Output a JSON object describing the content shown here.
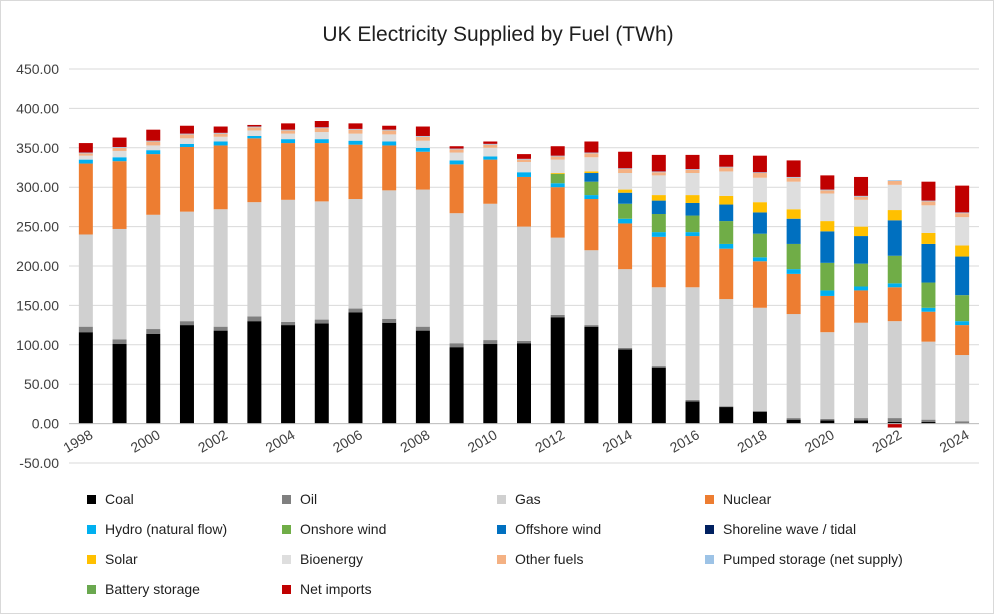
{
  "chart_data": {
    "type": "stacked-bar",
    "title": "UK Electricity Supplied by Fuel (TWh)",
    "xlabel": "",
    "ylabel": "",
    "ylim": [
      -50,
      450
    ],
    "yticks": [
      -50,
      0,
      50,
      100,
      150,
      200,
      250,
      300,
      350,
      400,
      450
    ],
    "ytick_labels": [
      "-50.00",
      "0.00",
      "50.00",
      "100.00",
      "150.00",
      "200.00",
      "250.00",
      "300.00",
      "350.00",
      "400.00",
      "450.00"
    ],
    "grid": true,
    "legend_position": "bottom",
    "categories": [
      "1998",
      "1999",
      "2000",
      "2001",
      "2002",
      "2003",
      "2004",
      "2005",
      "2006",
      "2007",
      "2008",
      "2009",
      "2010",
      "2011",
      "2012",
      "2013",
      "2014",
      "2015",
      "2016",
      "2017",
      "2018",
      "2019",
      "2020",
      "2021",
      "2022",
      "2023",
      "2024"
    ],
    "x_tick_labels": [
      "1998",
      "2000",
      "2002",
      "2004",
      "2006",
      "2008",
      "2010",
      "2012",
      "2014",
      "2016",
      "2018",
      "2020",
      "2022",
      "2024"
    ],
    "series": [
      {
        "name": "Coal",
        "color": "#000000",
        "values": [
          116,
          101,
          114,
          125,
          118,
          130,
          125,
          127,
          141,
          128,
          118,
          97,
          101,
          102,
          135,
          123,
          94,
          71,
          28,
          21,
          15,
          5,
          4,
          4,
          2,
          2,
          0
        ]
      },
      {
        "name": "Oil",
        "color": "#7f7f7f",
        "values": [
          7,
          6,
          6,
          5,
          5,
          6,
          4,
          5,
          5,
          5,
          5,
          5,
          5,
          3,
          3,
          2,
          2,
          2,
          2,
          1,
          1,
          2,
          2,
          3,
          5,
          3,
          3
        ]
      },
      {
        "name": "Gas",
        "color": "#d0d0d0",
        "values": [
          117,
          140,
          145,
          139,
          149,
          145,
          155,
          150,
          139,
          163,
          174,
          165,
          173,
          145,
          98,
          95,
          100,
          100,
          143,
          136,
          131,
          132,
          110,
          121,
          123,
          99,
          84
        ]
      },
      {
        "name": "Nuclear",
        "color": "#ed7d31",
        "values": [
          90,
          86,
          77,
          82,
          81,
          81,
          72,
          74,
          69,
          57,
          48,
          62,
          56,
          63,
          64,
          65,
          58,
          64,
          65,
          64,
          59,
          51,
          46,
          41,
          43,
          38,
          38
        ]
      },
      {
        "name": "Hydro (natural flow)",
        "color": "#00b0f0",
        "values": [
          5,
          5,
          5,
          4,
          5,
          3,
          5,
          5,
          5,
          5,
          5,
          5,
          4,
          6,
          5,
          5,
          6,
          6,
          5,
          6,
          5,
          6,
          7,
          5,
          5,
          5,
          5
        ]
      },
      {
        "name": "Onshore wind",
        "color": "#70ad47",
        "values": [
          0,
          0,
          0,
          0,
          0,
          0,
          0,
          0,
          0,
          0,
          0,
          0,
          0,
          0,
          12,
          17,
          19,
          23,
          21,
          29,
          30,
          32,
          35,
          29,
          35,
          32,
          33
        ]
      },
      {
        "name": "Offshore wind",
        "color": "#0070c0",
        "values": [
          0,
          0,
          0,
          0,
          0,
          0,
          0,
          0,
          0,
          0,
          0,
          0,
          0,
          0,
          0,
          11,
          14,
          17,
          16,
          21,
          27,
          32,
          40,
          35,
          45,
          49,
          49
        ]
      },
      {
        "name": "Shoreline wave / tidal",
        "color": "#002060",
        "values": [
          0,
          0,
          0,
          0,
          0,
          0,
          0,
          0,
          0,
          0,
          0,
          0,
          0,
          0,
          0,
          0,
          0,
          0,
          0,
          0,
          0,
          0,
          0,
          0,
          0,
          0,
          0
        ]
      },
      {
        "name": "Solar",
        "color": "#ffc000",
        "values": [
          0,
          0,
          0,
          0,
          0,
          0,
          0,
          0,
          0,
          0,
          0,
          0,
          0,
          0,
          1,
          2,
          4,
          7,
          10,
          11,
          13,
          12,
          13,
          12,
          13,
          14,
          14
        ]
      },
      {
        "name": "Bioenergy",
        "color": "#dedede",
        "values": [
          5,
          8,
          6,
          7,
          6,
          7,
          7,
          9,
          9,
          9,
          9,
          10,
          11,
          13,
          17,
          18,
          21,
          25,
          28,
          31,
          31,
          35,
          35,
          34,
          32,
          35,
          36
        ]
      },
      {
        "name": "Other fuels",
        "color": "#f4b183",
        "values": [
          3,
          4,
          5,
          5,
          4,
          4,
          4,
          5,
          5,
          5,
          5,
          4,
          4,
          3,
          4,
          5,
          5,
          4,
          4,
          5,
          6,
          5,
          4,
          4,
          5,
          5,
          5
        ]
      },
      {
        "name": "Pumped storage (net supply)",
        "color": "#9dc3e6",
        "values": [
          1,
          1,
          1,
          1,
          1,
          1,
          1,
          1,
          1,
          1,
          1,
          1,
          1,
          1,
          1,
          1,
          1,
          1,
          1,
          1,
          1,
          1,
          1,
          1,
          1,
          1,
          1
        ]
      },
      {
        "name": "Battery storage",
        "color": "#6aa84f",
        "values": [
          0,
          0,
          0,
          0,
          0,
          0,
          0,
          0,
          0,
          0,
          0,
          0,
          0,
          0,
          0,
          0,
          0,
          0,
          0,
          0,
          0,
          0,
          0,
          0,
          0,
          0,
          0
        ]
      },
      {
        "name": "Net imports",
        "color": "#c00000",
        "values": [
          12,
          12,
          14,
          10,
          8,
          2,
          8,
          8,
          7,
          5,
          12,
          3,
          3,
          6,
          12,
          14,
          21,
          21,
          18,
          15,
          21,
          21,
          18,
          24,
          -5,
          24,
          34
        ]
      }
    ]
  }
}
